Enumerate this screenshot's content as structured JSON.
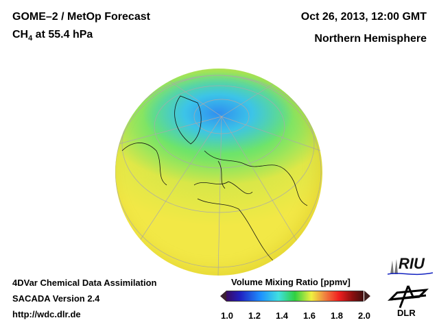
{
  "header": {
    "title": "GOME–2 / MetOp Forecast",
    "species_main": "CH",
    "species_sub": "4",
    "species_rest": " at 55.4 hPa",
    "datetime": "Oct 26, 2013, 12:00 GMT",
    "region": "Northern Hemisphere"
  },
  "footer": {
    "line1": "4DVar Chemical Data Assimilation",
    "line2": "SACADA Version 2.4",
    "line3": "http://wdc.dlr.de"
  },
  "colorbar": {
    "label": "Volume Mixing Ratio [ppmv]",
    "ticks": [
      "1.0",
      "1.2",
      "1.4",
      "1.6",
      "1.8",
      "2.0"
    ],
    "range": [
      1.0,
      2.0
    ]
  },
  "logos": {
    "riu": "RIU",
    "dlr": "DLR"
  }
}
